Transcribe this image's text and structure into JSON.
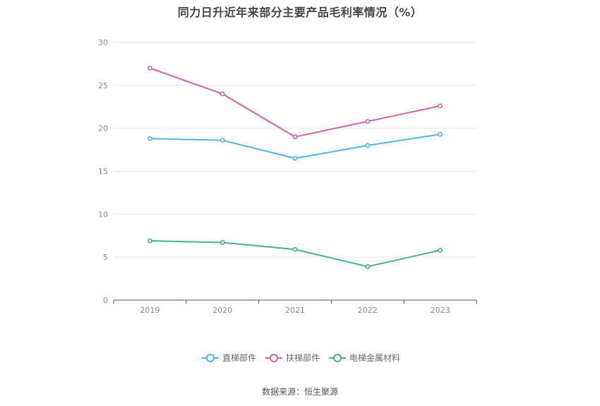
{
  "title": "同力日升近年来部分主要产品毛利率情况（%）",
  "source": "数据来源：恒生聚源",
  "chart_data": {
    "type": "line",
    "title": "同力日升近年来部分主要产品毛利率情况（%）",
    "categories": [
      "2019",
      "2020",
      "2021",
      "2022",
      "2023"
    ],
    "ylim": [
      0,
      30
    ],
    "yticks": [
      0,
      5,
      10,
      15,
      20,
      25,
      30
    ],
    "grid": true,
    "legend_position": "bottom",
    "series": [
      {
        "name": "直梯部件",
        "color": "#4DB6E8",
        "values": [
          18.8,
          18.6,
          16.5,
          18.0,
          19.3
        ]
      },
      {
        "name": "扶梯部件",
        "color": "#D462A8",
        "values": [
          27.0,
          24.0,
          19.0,
          20.8,
          22.6
        ]
      },
      {
        "name": "电梯金属材料",
        "color": "#44B094",
        "values": [
          6.9,
          6.7,
          5.9,
          3.9,
          5.8
        ]
      }
    ]
  },
  "colors": {
    "grid": "#e8e8e8",
    "axis": "#555555"
  }
}
